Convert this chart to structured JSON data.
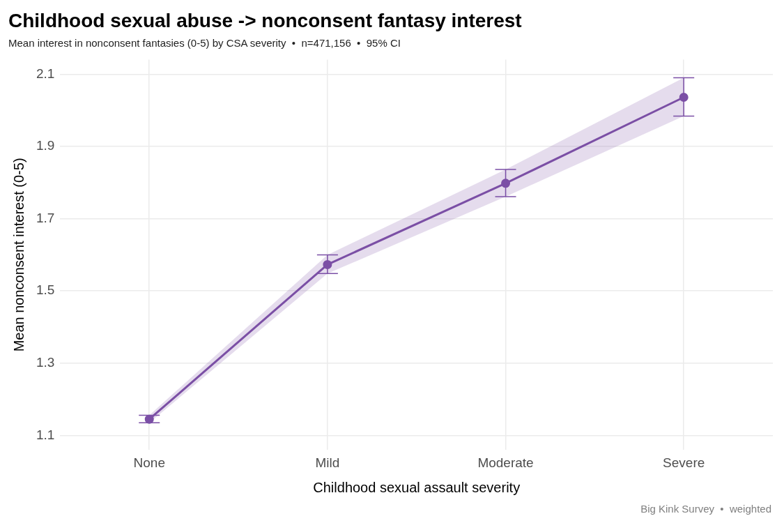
{
  "chart_data": {
    "type": "line",
    "title": "Childhood sexual abuse -> nonconsent fantasy interest",
    "subtitle": "Mean interest in nonconsent fantasies (0-5) by CSA severity  •  n=471,156  •  95% CI",
    "xlabel": "Childhood sexual assault severity",
    "ylabel": "Mean nonconsent interest (0-5)",
    "categories": [
      "None",
      "Mild",
      "Moderate",
      "Severe"
    ],
    "series": [
      {
        "color": "#7b4fa6",
        "values": [
          1.145,
          1.573,
          1.798,
          2.036
        ],
        "errors": [
          [
            1.135,
            1.156
          ],
          [
            1.548,
            1.6
          ],
          [
            1.761,
            1.836
          ],
          [
            1.984,
            2.09
          ]
        ],
        "lower": [
          1.135,
          1.548,
          1.761,
          1.984
        ],
        "upper": [
          1.156,
          1.6,
          1.836,
          2.09
        ]
      }
    ],
    "ylim": [
      1.06,
      2.14
    ],
    "yticks": [
      1.1,
      1.3,
      1.5,
      1.7,
      1.9,
      2.1
    ],
    "grid": true,
    "legend": false,
    "marker": "circle",
    "line_style": "solid",
    "annotations": [
      "Big Kink Survey  •  weighted"
    ]
  }
}
